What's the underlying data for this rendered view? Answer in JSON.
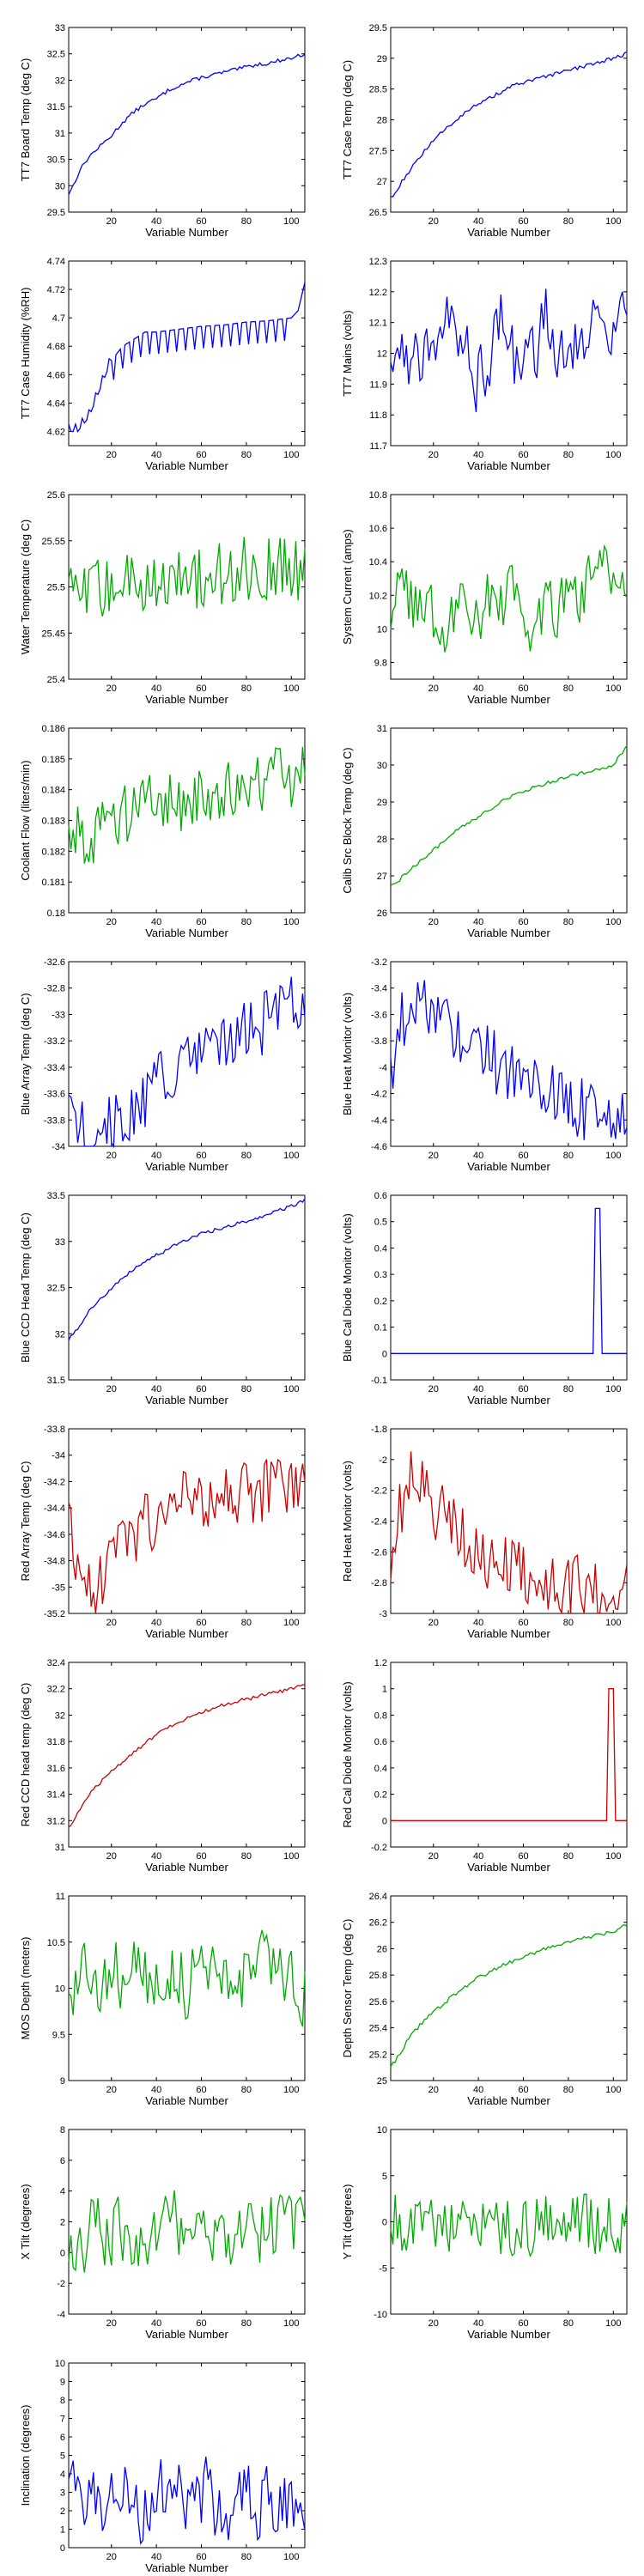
{
  "page": {
    "columns": 2
  },
  "chart_data": [
    {
      "type": "line",
      "xlabel": "Variable Number",
      "ylabel": "TT7 Board Temp (deg C)",
      "color": "#0000ff",
      "xlim": [
        1,
        106
      ],
      "ylim": [
        29.5,
        33
      ],
      "xticks": [
        20,
        40,
        60,
        80,
        100
      ],
      "yticks": [
        29.5,
        30,
        30.5,
        31,
        31.5,
        32,
        32.5,
        33
      ],
      "series": [
        {
          "shape": "rise",
          "x": [
            1,
            3,
            6,
            10,
            15,
            20,
            25,
            30,
            35,
            40,
            45,
            50,
            55,
            60,
            65,
            70,
            75,
            80,
            85,
            90,
            95,
            100,
            106
          ],
          "y": [
            29.85,
            30.0,
            30.3,
            30.55,
            30.75,
            30.95,
            31.2,
            31.4,
            31.55,
            31.65,
            31.8,
            31.9,
            31.98,
            32.05,
            32.1,
            32.15,
            32.2,
            32.25,
            32.3,
            32.32,
            32.38,
            32.42,
            32.5
          ]
        }
      ]
    },
    {
      "type": "line",
      "xlabel": "Variable Number",
      "ylabel": "TT7 Case Temp (deg C)",
      "color": "#0000ff",
      "xlim": [
        1,
        106
      ],
      "ylim": [
        26.5,
        29.5
      ],
      "xticks": [
        20,
        40,
        60,
        80,
        100
      ],
      "yticks": [
        26.5,
        27,
        27.5,
        28,
        28.5,
        29,
        29.5
      ],
      "series": [
        {
          "shape": "rise",
          "x": [
            1,
            3,
            6,
            10,
            15,
            20,
            25,
            30,
            35,
            40,
            45,
            50,
            55,
            60,
            65,
            70,
            75,
            80,
            85,
            90,
            95,
            100,
            106
          ],
          "y": [
            26.75,
            26.8,
            27.0,
            27.2,
            27.45,
            27.65,
            27.85,
            28.0,
            28.15,
            28.25,
            28.35,
            28.45,
            28.55,
            28.6,
            28.65,
            28.7,
            28.75,
            28.8,
            28.85,
            28.9,
            28.95,
            29.0,
            29.08
          ]
        }
      ]
    },
    {
      "type": "line",
      "xlabel": "Variable Number",
      "ylabel": "TT7 Case Humidity (%RH)",
      "color": "#0000ff",
      "xlim": [
        1,
        106
      ],
      "ylim": [
        4.61,
        4.74
      ],
      "xticks": [
        20,
        40,
        60,
        80,
        100
      ],
      "yticks": [
        4.62,
        4.64,
        4.66,
        4.68,
        4.7,
        4.72,
        4.74
      ],
      "series": [
        {
          "shape": "steps",
          "x": [
            1,
            5,
            10,
            15,
            20,
            25,
            30,
            35,
            40,
            50,
            60,
            70,
            80,
            90,
            100,
            103,
            106
          ],
          "y": [
            4.62,
            4.62,
            4.63,
            4.65,
            4.67,
            4.68,
            4.685,
            4.69,
            4.69,
            4.692,
            4.694,
            4.695,
            4.697,
            4.698,
            4.7,
            4.705,
            4.725
          ]
        }
      ]
    },
    {
      "type": "line",
      "xlabel": "Variable Number",
      "ylabel": "TT7 Mains  (volts)",
      "color": "#0000ff",
      "xlim": [
        1,
        106
      ],
      "ylim": [
        11.7,
        12.3
      ],
      "xticks": [
        20,
        40,
        60,
        80,
        100
      ],
      "yticks": [
        11.7,
        11.8,
        11.9,
        12,
        12.1,
        12.2,
        12.3
      ],
      "series": [
        {
          "shape": "wild",
          "x": [
            1,
            10,
            20,
            30,
            40,
            50,
            60,
            70,
            80,
            90,
            100,
            106
          ],
          "y": [
            12.0,
            11.95,
            12.1,
            12.05,
            11.95,
            12.1,
            11.9,
            12.1,
            12.05,
            12.1,
            12.12,
            12.12
          ]
        }
      ]
    },
    {
      "type": "line",
      "xlabel": "Variable Number",
      "ylabel": "Water Temperature (deg C)",
      "color": "#00aa00",
      "xlim": [
        1,
        106
      ],
      "ylim": [
        25.4,
        25.6
      ],
      "xticks": [
        20,
        40,
        60,
        80,
        100
      ],
      "yticks": [
        25.4,
        25.45,
        25.5,
        25.55,
        25.6
      ],
      "series": [
        {
          "shape": "noise",
          "x": [
            1,
            20,
            40,
            60,
            80,
            106
          ],
          "y": [
            25.49,
            25.5,
            25.51,
            25.51,
            25.52,
            25.52
          ]
        }
      ]
    },
    {
      "type": "line",
      "xlabel": "Variable Number",
      "ylabel": "System Current (amps)",
      "color": "#00aa00",
      "xlim": [
        1,
        106
      ],
      "ylim": [
        9.7,
        10.8
      ],
      "xticks": [
        20,
        40,
        60,
        80,
        100
      ],
      "yticks": [
        9.8,
        10,
        10.2,
        10.4,
        10.6,
        10.8
      ],
      "series": [
        {
          "shape": "wild",
          "x": [
            1,
            20,
            40,
            60,
            80,
            106
          ],
          "y": [
            10.15,
            10.05,
            10.2,
            10.1,
            10.25,
            10.4
          ]
        }
      ]
    },
    {
      "type": "line",
      "xlabel": "Variable Number",
      "ylabel": "Coolant Flow (liters/min)",
      "color": "#00aa00",
      "xlim": [
        1,
        106
      ],
      "ylim": [
        0.18,
        0.186
      ],
      "xticks": [
        20,
        40,
        60,
        80,
        100
      ],
      "yticks": [
        0.18,
        0.181,
        0.182,
        0.183,
        0.184,
        0.185,
        0.186
      ],
      "series": [
        {
          "shape": "noise",
          "x": [
            1,
            10,
            20,
            40,
            60,
            80,
            106
          ],
          "y": [
            0.1828,
            0.1825,
            0.1832,
            0.1835,
            0.1838,
            0.1842,
            0.1845
          ]
        }
      ]
    },
    {
      "type": "line",
      "xlabel": "Variable Number",
      "ylabel": "Calib Src Block Temp (deg C)",
      "color": "#00aa00",
      "xlim": [
        1,
        106
      ],
      "ylim": [
        26,
        31
      ],
      "xticks": [
        20,
        40,
        60,
        80,
        100
      ],
      "yticks": [
        26,
        27,
        28,
        29,
        30,
        31
      ],
      "series": [
        {
          "shape": "rise",
          "x": [
            1,
            5,
            10,
            20,
            30,
            40,
            50,
            60,
            70,
            80,
            90,
            100,
            106
          ],
          "y": [
            26.7,
            26.9,
            27.2,
            27.7,
            28.2,
            28.6,
            29.0,
            29.3,
            29.5,
            29.7,
            29.85,
            30.0,
            30.5
          ]
        }
      ]
    },
    {
      "type": "line",
      "xlabel": "Variable Number",
      "ylabel": "Blue Array Temp (deg C)",
      "color": "#0000ff",
      "xlim": [
        1,
        106
      ],
      "ylim": [
        -34,
        -32.6
      ],
      "xticks": [
        20,
        40,
        60,
        80,
        100
      ],
      "yticks": [
        -34,
        -33.8,
        -33.6,
        -33.4,
        -33.2,
        -33,
        -32.8,
        -32.6
      ],
      "series": [
        {
          "shape": "noise",
          "x": [
            1,
            5,
            10,
            15,
            20,
            30,
            40,
            50,
            60,
            70,
            80,
            90,
            100,
            106
          ],
          "y": [
            -33.5,
            -33.8,
            -33.98,
            -33.95,
            -33.85,
            -33.7,
            -33.55,
            -33.4,
            -33.3,
            -33.2,
            -33.15,
            -33.05,
            -32.95,
            -32.85
          ]
        }
      ]
    },
    {
      "type": "line",
      "xlabel": "Variable Number",
      "ylabel": "Blue Heat Monitor (volts)",
      "color": "#0000ff",
      "xlim": [
        1,
        106
      ],
      "ylim": [
        -4.6,
        -3.2
      ],
      "xticks": [
        20,
        40,
        60,
        80,
        100
      ],
      "yticks": [
        -4.6,
        -4.4,
        -4.2,
        -4,
        -3.8,
        -3.6,
        -3.4,
        -3.2
      ],
      "series": [
        {
          "shape": "noise",
          "x": [
            1,
            5,
            10,
            15,
            20,
            30,
            40,
            50,
            60,
            70,
            80,
            90,
            100,
            106
          ],
          "y": [
            -4.0,
            -3.7,
            -3.5,
            -3.55,
            -3.6,
            -3.7,
            -3.85,
            -4.0,
            -4.1,
            -4.2,
            -4.25,
            -4.35,
            -4.4,
            -4.45
          ]
        }
      ]
    },
    {
      "type": "line",
      "xlabel": "Variable Number",
      "ylabel": "Blue CCD Head Temp (deg C)",
      "color": "#0000ff",
      "xlim": [
        1,
        106
      ],
      "ylim": [
        31.5,
        33.5
      ],
      "xticks": [
        20,
        40,
        60,
        80,
        100
      ],
      "yticks": [
        31.5,
        32,
        32.5,
        33,
        33.5
      ],
      "series": [
        {
          "shape": "rise",
          "x": [
            1,
            5,
            10,
            20,
            30,
            40,
            50,
            60,
            70,
            80,
            90,
            100,
            106
          ],
          "y": [
            31.95,
            32.05,
            32.25,
            32.5,
            32.7,
            32.85,
            32.98,
            33.08,
            33.15,
            33.22,
            33.3,
            33.38,
            33.45
          ]
        }
      ]
    },
    {
      "type": "line",
      "xlabel": "Variable Number",
      "ylabel": "Blue Cal Diode Monitor (volts)",
      "color": "#0000ff",
      "xlim": [
        1,
        106
      ],
      "ylim": [
        -0.1,
        0.6
      ],
      "xticks": [
        20,
        40,
        60,
        80,
        100
      ],
      "yticks": [
        -0.1,
        0,
        0.1,
        0.2,
        0.3,
        0.4,
        0.5,
        0.6
      ],
      "series": [
        {
          "shape": "spike",
          "x": [
            1,
            91,
            92,
            94,
            95,
            106
          ],
          "y": [
            0,
            0,
            0.55,
            0.55,
            0,
            0
          ]
        }
      ]
    },
    {
      "type": "line",
      "xlabel": "Variable Number",
      "ylabel": "Red Array Temp (deg C)",
      "color": "#cc0000",
      "xlim": [
        1,
        106
      ],
      "ylim": [
        -35.2,
        -33.8
      ],
      "xticks": [
        20,
        40,
        60,
        80,
        100
      ],
      "yticks": [
        -35.2,
        -35,
        -34.8,
        -34.6,
        -34.4,
        -34.2,
        -34,
        -33.8
      ],
      "series": [
        {
          "shape": "noise",
          "x": [
            1,
            5,
            10,
            15,
            20,
            30,
            40,
            50,
            60,
            70,
            80,
            90,
            100,
            106
          ],
          "y": [
            -34.5,
            -34.85,
            -35.0,
            -34.95,
            -34.8,
            -34.6,
            -34.45,
            -34.35,
            -34.3,
            -34.3,
            -34.3,
            -34.25,
            -34.25,
            -34.2
          ]
        }
      ]
    },
    {
      "type": "line",
      "xlabel": "Variable Number",
      "ylabel": "Red Heat Monitor (volts)",
      "color": "#cc0000",
      "xlim": [
        1,
        106
      ],
      "ylim": [
        -3,
        -1.8
      ],
      "xticks": [
        20,
        40,
        60,
        80,
        100
      ],
      "yticks": [
        -3,
        -2.8,
        -2.6,
        -2.4,
        -2.2,
        -2,
        -1.8
      ],
      "series": [
        {
          "shape": "noise",
          "x": [
            1,
            5,
            10,
            15,
            20,
            30,
            40,
            50,
            60,
            70,
            80,
            90,
            100,
            106
          ],
          "y": [
            -2.65,
            -2.3,
            -2.15,
            -2.2,
            -2.3,
            -2.45,
            -2.6,
            -2.7,
            -2.75,
            -2.8,
            -2.82,
            -2.83,
            -2.83,
            -2.82
          ]
        }
      ]
    },
    {
      "type": "line",
      "xlabel": "Variable Number",
      "ylabel": "Red CCD head temp (deg C)",
      "color": "#cc0000",
      "xlim": [
        1,
        106
      ],
      "ylim": [
        31,
        32.4
      ],
      "xticks": [
        20,
        40,
        60,
        80,
        100
      ],
      "yticks": [
        31,
        31.2,
        31.4,
        31.6,
        31.8,
        32,
        32.2,
        32.4
      ],
      "series": [
        {
          "shape": "rise",
          "x": [
            1,
            5,
            10,
            20,
            30,
            40,
            50,
            60,
            70,
            80,
            90,
            100,
            106
          ],
          "y": [
            31.15,
            31.25,
            31.4,
            31.58,
            31.72,
            31.85,
            31.95,
            32.02,
            32.08,
            32.12,
            32.16,
            32.2,
            32.24
          ]
        }
      ]
    },
    {
      "type": "line",
      "xlabel": "Variable Number",
      "ylabel": "Red Cal Diode Monitor (volts)",
      "color": "#cc0000",
      "xlim": [
        1,
        106
      ],
      "ylim": [
        -0.2,
        1.2
      ],
      "xticks": [
        20,
        40,
        60,
        80,
        100
      ],
      "yticks": [
        -0.2,
        0,
        0.2,
        0.4,
        0.6,
        0.8,
        1,
        1.2
      ],
      "series": [
        {
          "shape": "spike",
          "x": [
            1,
            97,
            98,
            100,
            101,
            106
          ],
          "y": [
            0,
            0,
            1.0,
            1.0,
            0,
            0
          ]
        }
      ]
    },
    {
      "type": "line",
      "xlabel": "Variable Number",
      "ylabel": "MOS Depth  (meters)",
      "color": "#00aa00",
      "xlim": [
        1,
        106
      ],
      "ylim": [
        9,
        11
      ],
      "xticks": [
        20,
        40,
        60,
        80,
        100
      ],
      "yticks": [
        9,
        9.5,
        10,
        10.5,
        11
      ],
      "series": [
        {
          "shape": "wild",
          "x": [
            1,
            106
          ],
          "y": [
            10.1,
            10.1
          ]
        }
      ]
    },
    {
      "type": "line",
      "xlabel": "Variable Number",
      "ylabel": "Depth Sensor Temp (deg C)",
      "color": "#00aa00",
      "xlim": [
        1,
        106
      ],
      "ylim": [
        25,
        26.4
      ],
      "xticks": [
        20,
        40,
        60,
        80,
        100
      ],
      "yticks": [
        25,
        25.2,
        25.4,
        25.6,
        25.8,
        26,
        26.2,
        26.4
      ],
      "series": [
        {
          "shape": "rise",
          "x": [
            1,
            5,
            10,
            20,
            30,
            40,
            50,
            60,
            70,
            80,
            90,
            100,
            106
          ],
          "y": [
            25.1,
            25.2,
            25.35,
            25.52,
            25.66,
            25.78,
            25.87,
            25.94,
            26.0,
            26.05,
            26.09,
            26.13,
            26.18
          ]
        }
      ]
    },
    {
      "type": "line",
      "xlabel": "Variable Number",
      "ylabel": "X Tilt  (degrees)",
      "color": "#00aa00",
      "xlim": [
        1,
        106
      ],
      "ylim": [
        -4,
        8
      ],
      "xticks": [
        20,
        40,
        60,
        80,
        100
      ],
      "yticks": [
        -4,
        -2,
        0,
        2,
        4,
        6,
        8
      ],
      "series": [
        {
          "shape": "wild",
          "x": [
            1,
            106
          ],
          "y": [
            1.5,
            1.5
          ]
        }
      ]
    },
    {
      "type": "line",
      "xlabel": "Variable Number",
      "ylabel": "Y Tilt  (degrees)",
      "color": "#00aa00",
      "xlim": [
        1,
        106
      ],
      "ylim": [
        -10,
        10
      ],
      "xticks": [
        20,
        40,
        60,
        80,
        100
      ],
      "yticks": [
        -10,
        -5,
        0,
        5,
        10
      ],
      "series": [
        {
          "shape": "noise",
          "x": [
            1,
            106
          ],
          "y": [
            -0.3,
            -0.3
          ]
        }
      ]
    },
    {
      "type": "line",
      "xlabel": "Variable Number",
      "ylabel": "Inclination  (degrees)",
      "color": "#0000ff",
      "xlim": [
        1,
        106
      ],
      "ylim": [
        0,
        10
      ],
      "xticks": [
        20,
        40,
        60,
        80,
        100
      ],
      "yticks": [
        0,
        1,
        2,
        3,
        4,
        5,
        6,
        7,
        8,
        9,
        10
      ],
      "series": [
        {
          "shape": "wild",
          "x": [
            1,
            106
          ],
          "y": [
            2.5,
            2.5
          ]
        }
      ]
    }
  ]
}
